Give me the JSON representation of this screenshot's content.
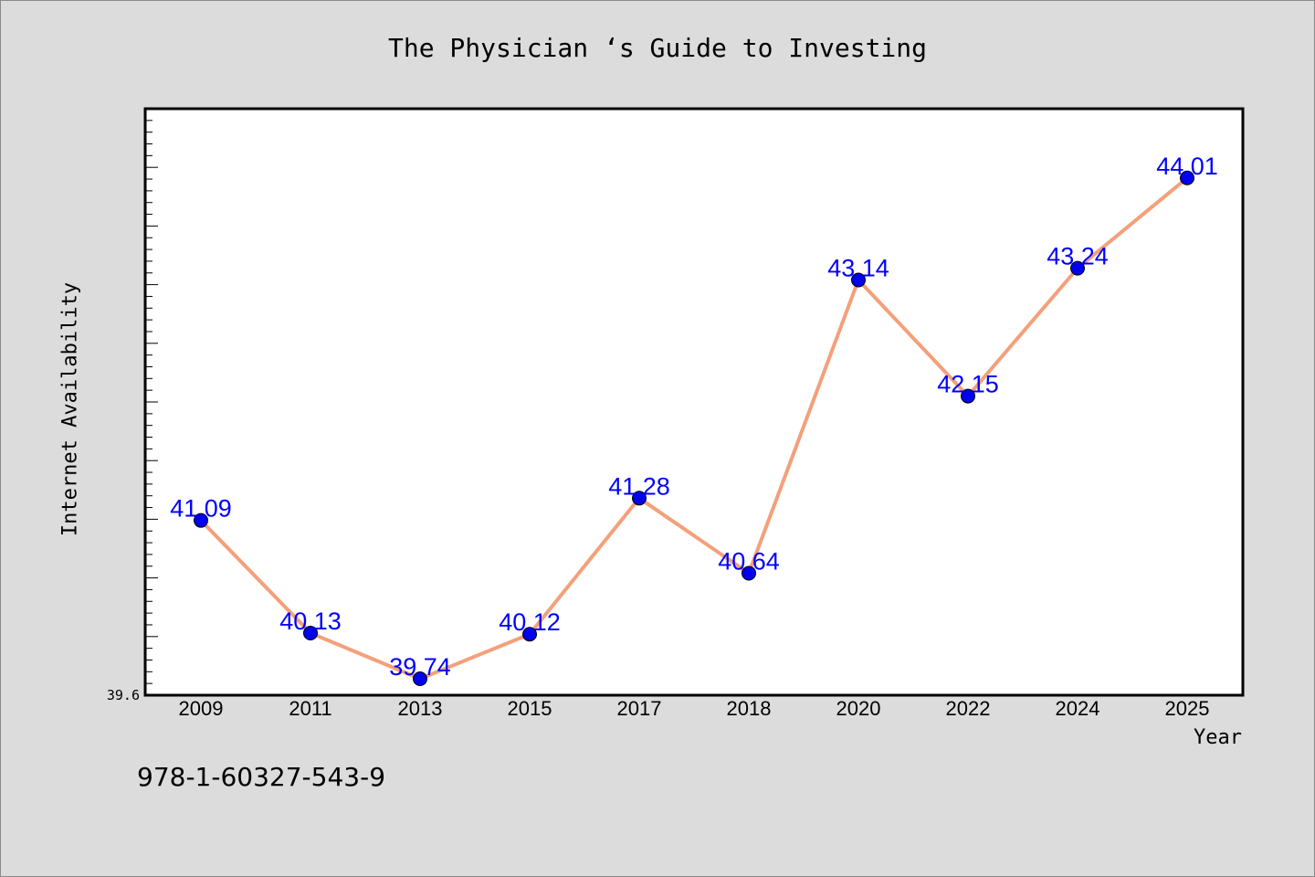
{
  "chart_data": {
    "type": "line",
    "title": "The Physician ‘s Guide to Investing",
    "xlabel": "Year",
    "ylabel": "Internet Availability",
    "categories": [
      "2009",
      "2011",
      "2013",
      "2015",
      "2017",
      "2018",
      "2020",
      "2022",
      "2024",
      "2025"
    ],
    "series": [
      {
        "values": [
          41.09,
          40.13,
          39.74,
          40.12,
          41.28,
          40.64,
          43.14,
          42.15,
          43.24,
          44.01
        ]
      }
    ],
    "data_labels": [
      "41.09",
      "40.13",
      "39.74",
      "40.12",
      "41.28",
      "40.64",
      "43.14",
      "42.15",
      "43.24",
      "44.01"
    ],
    "yticks_labeled": [
      "39.6"
    ],
    "ylim": [
      39.6,
      44.6
    ],
    "grid": false,
    "colors": {
      "line": "#f4a07a",
      "marker": "#0000ee",
      "label": "#0000ff",
      "background": "#dcdcdc",
      "plot": "#ffffff"
    }
  },
  "footnote": "978-1-60327-543-9"
}
